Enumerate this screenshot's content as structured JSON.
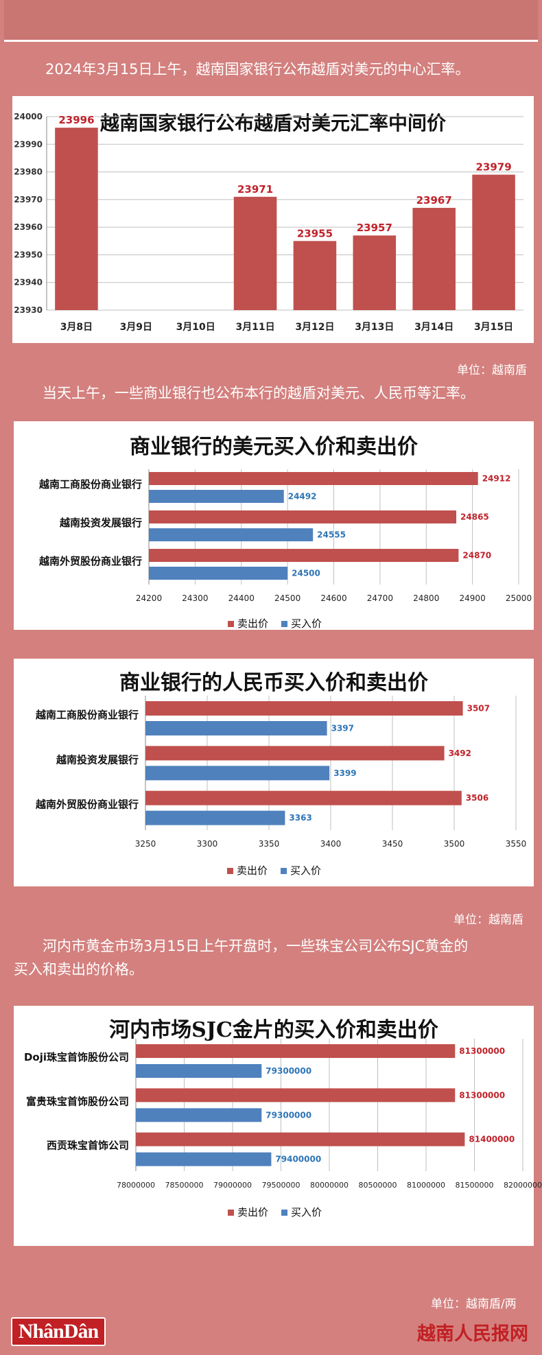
{
  "intro1": "2024年3月15日上午，越南国家银行公布越盾对美元的中心汇率。",
  "unit1": "单位：越南盾",
  "intro2": "当天上午，一些商业银行也公布本行的越盾对美元、人民币等汇率。",
  "unit2": "单位：越南盾",
  "intro3a": "河内市黄金市场3月15日上午开盘时，一些珠宝公司公布SJC黄金的",
  "intro3b": "买入和卖出的价格。",
  "unit3": "单位：越南盾/两",
  "logo_left": "NhânDân",
  "logo_right": "越南人民报网",
  "colors": {
    "sell": "#c0504d",
    "buy": "#4f81bd",
    "bar1": "#c0504d",
    "label_red": "#c0222a",
    "label_blue": "#2e75b6"
  },
  "chart_data": [
    {
      "type": "bar",
      "title": "越南国家银行公布越盾对美元汇率中间价",
      "categories": [
        "3月8日",
        "3月9日",
        "3月10日",
        "3月11日",
        "3月12日",
        "3月13日",
        "3月14日",
        "3月15日"
      ],
      "values": [
        23996,
        null,
        null,
        23971,
        23955,
        23957,
        23967,
        23979
      ],
      "value_labels": [
        "23996",
        "",
        "",
        "23971",
        "23955",
        "23957",
        "23967",
        "23979"
      ],
      "ylim": [
        23930,
        24000
      ],
      "yticks": [
        "23930",
        "23940",
        "23950",
        "23960",
        "23970",
        "23980",
        "23990",
        "24000"
      ],
      "grid": true
    },
    {
      "type": "bar",
      "orientation": "horizontal",
      "title": "商业银行的美元买入价和卖出价",
      "categories": [
        "越南工商股份商业银行",
        "越南投资发展银行",
        "越南外贸股份商业银行"
      ],
      "series": [
        {
          "name": "卖出价",
          "values": [
            24912,
            24865,
            24870
          ],
          "labels": [
            "24912",
            "24865",
            "24870"
          ]
        },
        {
          "name": "买入价",
          "values": [
            24492,
            24555,
            24500
          ],
          "labels": [
            "24492",
            "24555",
            "24500"
          ]
        }
      ],
      "xlim": [
        24200,
        25000
      ],
      "xticks": [
        "24200",
        "24300",
        "24400",
        "24500",
        "24600",
        "24700",
        "24800",
        "24900",
        "25000"
      ],
      "legend": "bottom",
      "grid": true
    },
    {
      "type": "bar",
      "orientation": "horizontal",
      "title": "商业银行的人民币买入价和卖出价",
      "categories": [
        "越南工商股份商业银行",
        "越南投资发展银行",
        "越南外贸股份商业银行"
      ],
      "series": [
        {
          "name": "卖出价",
          "values": [
            3507,
            3492,
            3506
          ],
          "labels": [
            "3507",
            "3492",
            "3506"
          ]
        },
        {
          "name": "买入价",
          "values": [
            3397,
            3399,
            3363
          ],
          "labels": [
            "3397",
            "3399",
            "3363"
          ]
        }
      ],
      "xlim": [
        3250,
        3550
      ],
      "xticks": [
        "3250",
        "3300",
        "3350",
        "3400",
        "3450",
        "3500",
        "3550"
      ],
      "legend": "bottom",
      "grid": true
    },
    {
      "type": "bar",
      "orientation": "horizontal",
      "title": "河内市场SJC金片的买入价和卖出价",
      "categories": [
        "Doji珠宝首饰股份公司",
        "富贵珠宝首饰股份公司",
        "西贡珠宝首饰公司"
      ],
      "series": [
        {
          "name": "卖出价",
          "values": [
            81300000,
            81300000,
            81400000
          ],
          "labels": [
            "81300000",
            "81300000",
            "81400000"
          ]
        },
        {
          "name": "买入价",
          "values": [
            79300000,
            79300000,
            79400000
          ],
          "labels": [
            "79300000",
            "79300000",
            "79400000"
          ]
        }
      ],
      "xlim": [
        78000000,
        82000000
      ],
      "xticks": [
        "78000000",
        "78500000",
        "79000000",
        "79500000",
        "80000000",
        "80500000",
        "81000000",
        "81500000",
        "82000000"
      ],
      "legend": "bottom",
      "grid": true
    }
  ]
}
